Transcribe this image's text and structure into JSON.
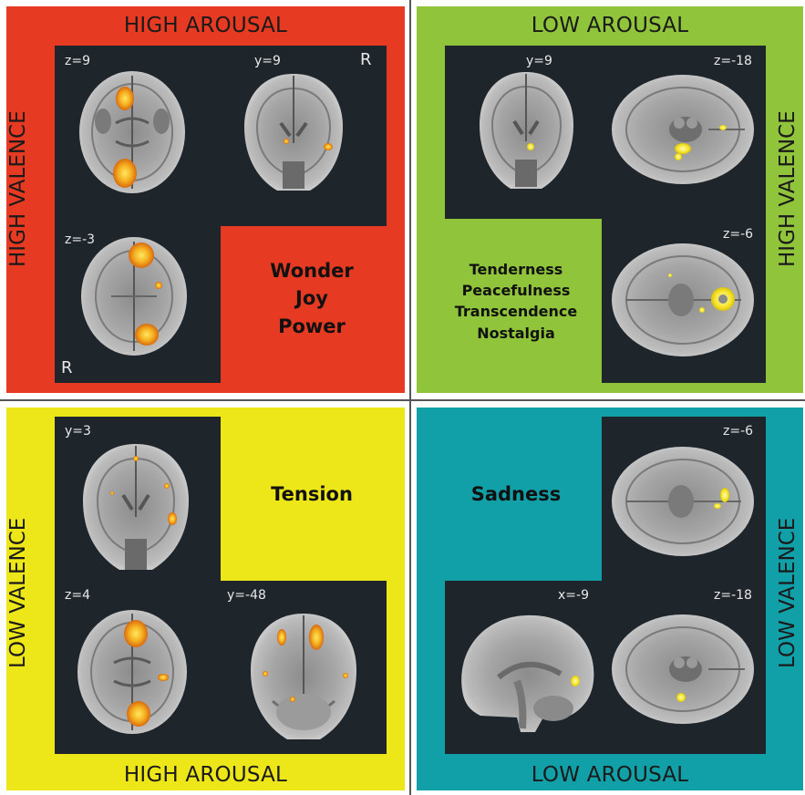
{
  "quadrants": {
    "top_left": {
      "color": "#e63a22",
      "arousal": "HIGH AROUSAL",
      "valence": "HIGH VALENCE",
      "emotions": [
        "Wonder",
        "Joy",
        "Power"
      ],
      "slices": [
        "z=9",
        "y=9",
        "z=-3"
      ],
      "r_marks": [
        "R",
        "R"
      ]
    },
    "top_right": {
      "color": "#90c43a",
      "arousal": "LOW AROUSAL",
      "valence": "HIGH VALENCE",
      "emotions": [
        "Tenderness",
        "Peacefulness",
        "Transcendence",
        "Nostalgia"
      ],
      "slices": [
        "y=9",
        "z=-18",
        "z=-6"
      ]
    },
    "bottom_left": {
      "color": "#ede719",
      "arousal": "HIGH AROUSAL",
      "valence": "LOW VALENCE",
      "emotions": [
        "Tension"
      ],
      "slices": [
        "y=3",
        "z=4",
        "y=-48"
      ]
    },
    "bottom_right": {
      "color": "#12a0a8",
      "arousal": "LOW AROUSAL",
      "valence": "LOW VALENCE",
      "emotions": [
        "Sadness"
      ],
      "slices": [
        "z=-6",
        "x=-9",
        "z=-18"
      ]
    }
  },
  "activation_colors": {
    "orange": "#f0a020",
    "yellow": "#f5e020"
  }
}
